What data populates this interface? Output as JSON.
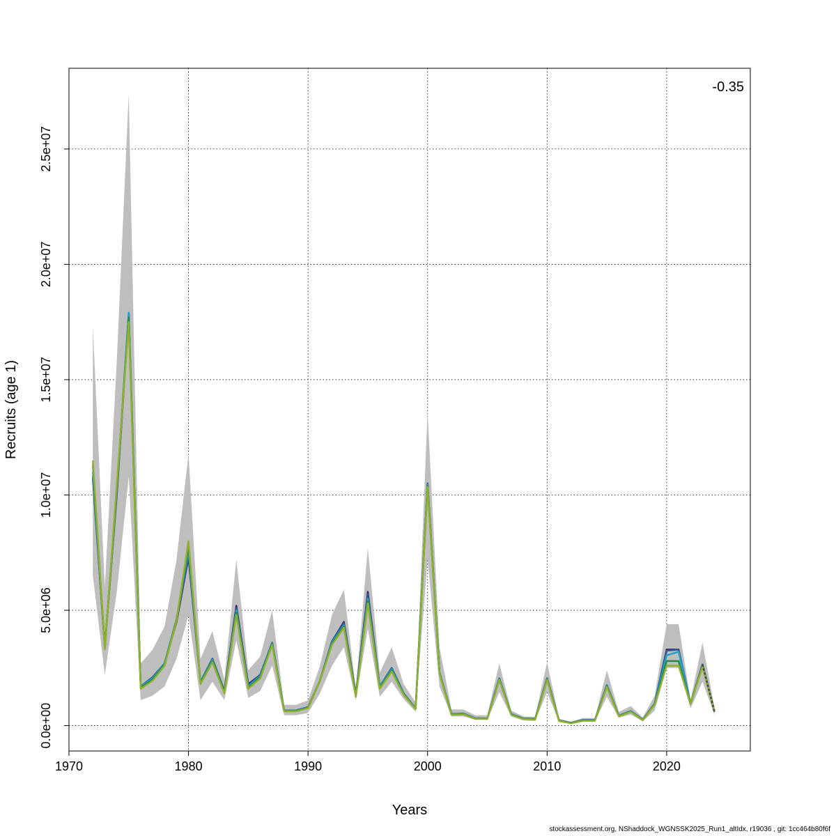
{
  "chart_data": {
    "type": "line",
    "xlabel": "Years",
    "ylabel": "Recruits (age 1)",
    "xlim": [
      1970,
      2027
    ],
    "ylim": [
      -1100000,
      28500000
    ],
    "x_ticks": [
      1970,
      1980,
      1990,
      2000,
      2010,
      2020
    ],
    "x_tick_labels": [
      "1970",
      "1980",
      "1990",
      "2000",
      "2010",
      "2020"
    ],
    "y_ticks": [
      0,
      5000000,
      10000000,
      15000000,
      20000000,
      25000000
    ],
    "y_tick_labels": [
      "0.0e+00",
      "5.0e+06",
      "1.0e+07",
      "1.5e+07",
      "2.0e+07",
      "2.5e+07"
    ],
    "grid": true,
    "annotation": "-0.35",
    "band_color": "#bebebe",
    "x": [
      1972,
      1973,
      1974,
      1975,
      1976,
      1977,
      1978,
      1979,
      1980,
      1981,
      1982,
      1983,
      1984,
      1985,
      1986,
      1987,
      1988,
      1989,
      1990,
      1991,
      1992,
      1993,
      1994,
      1995,
      1996,
      1997,
      1998,
      1999,
      2000,
      2001,
      2002,
      2003,
      2004,
      2005,
      2006,
      2007,
      2008,
      2009,
      2010,
      2011,
      2012,
      2013,
      2014,
      2015,
      2016,
      2017,
      2018,
      2019,
      2020,
      2021,
      2022,
      2023,
      2024
    ],
    "band_lower": [
      6500000,
      2200000,
      5800000,
      10800000,
      1100000,
      1300000,
      1700000,
      2900000,
      4800000,
      1100000,
      1900000,
      1100000,
      3700000,
      1200000,
      1500000,
      2600000,
      450000,
      450000,
      550000,
      1400000,
      2600000,
      3400000,
      1100000,
      4200000,
      1250000,
      1900000,
      1150000,
      600000,
      7200000,
      1700000,
      400000,
      400000,
      250000,
      250000,
      1450000,
      400000,
      220000,
      200000,
      1450000,
      160000,
      90000,
      180000,
      180000,
      1250000,
      350000,
      480000,
      180000,
      650000,
      2500000,
      2500000,
      750000,
      1900000,
      480000
    ],
    "band_upper": [
      17300000,
      6000000,
      15800000,
      27400000,
      2700000,
      3300000,
      4300000,
      7200000,
      11800000,
      2900000,
      4100000,
      2000000,
      7200000,
      2400000,
      3000000,
      5000000,
      900000,
      900000,
      1100000,
      2600000,
      4800000,
      5900000,
      1600000,
      7700000,
      2300000,
      3400000,
      1800000,
      1000000,
      13600000,
      3400000,
      700000,
      700000,
      450000,
      450000,
      2700000,
      650000,
      400000,
      380000,
      2750000,
      300000,
      170000,
      330000,
      330000,
      2400000,
      600000,
      850000,
      350000,
      1300000,
      4400000,
      4400000,
      1100000,
      3600000,
      800000
    ],
    "series": [
      {
        "color": "#3d1f6b",
        "values": [
          10700000,
          3400000,
          10000000,
          17800000,
          1700000,
          2100000,
          2700000,
          4500000,
          7300000,
          1900000,
          2900000,
          1500000,
          5200000,
          1800000,
          2200000,
          3600000,
          660000,
          660000,
          800000,
          1950000,
          3650000,
          4500000,
          1350000,
          5800000,
          1700000,
          2500000,
          1400000,
          750000,
          10500000,
          2300000,
          500000,
          520000,
          320000,
          310000,
          2050000,
          500000,
          310000,
          290000,
          2050000,
          220000,
          120000,
          240000,
          240000,
          1750000,
          430000,
          630000,
          260000,
          950000,
          3300000,
          3300000,
          950000,
          2650000,
          600000
        ]
      },
      {
        "color": "#2e5a8f",
        "values": [
          10800000,
          3400000,
          10100000,
          17900000,
          1700000,
          2100000,
          2700000,
          4600000,
          7400000,
          1900000,
          2900000,
          1500000,
          5100000,
          1750000,
          2200000,
          3600000,
          660000,
          660000,
          790000,
          1950000,
          3650000,
          4450000,
          1350000,
          5700000,
          1700000,
          2500000,
          1400000,
          750000,
          10500000,
          2300000,
          500000,
          520000,
          320000,
          310000,
          2050000,
          500000,
          310000,
          290000,
          2050000,
          220000,
          120000,
          240000,
          240000,
          1750000,
          430000,
          630000,
          260000,
          950000,
          3250000,
          3300000,
          950000,
          2650000,
          620000
        ]
      },
      {
        "color": "#26a0c8",
        "values": [
          11000000,
          3350000,
          10200000,
          17900000,
          1700000,
          2050000,
          2700000,
          4600000,
          7600000,
          1900000,
          2850000,
          1450000,
          5000000,
          1700000,
          2150000,
          3580000,
          650000,
          650000,
          780000,
          1950000,
          3600000,
          4350000,
          1300000,
          5500000,
          1700000,
          2450000,
          1380000,
          740000,
          10450000,
          2300000,
          490000,
          510000,
          310000,
          300000,
          2030000,
          490000,
          300000,
          280000,
          2020000,
          210000,
          110000,
          230000,
          230000,
          1720000,
          420000,
          620000,
          250000,
          930000,
          3050000,
          3200000,
          950000,
          2600000,
          620000
        ]
      },
      {
        "color": "#1f8a4c",
        "values": [
          11300000,
          3350000,
          10300000,
          17700000,
          1650000,
          2000000,
          2650000,
          4600000,
          7800000,
          1850000,
          2800000,
          1450000,
          4900000,
          1650000,
          2100000,
          3550000,
          640000,
          640000,
          770000,
          1950000,
          3550000,
          4300000,
          1300000,
          5400000,
          1650000,
          2400000,
          1360000,
          730000,
          10400000,
          2280000,
          480000,
          500000,
          300000,
          300000,
          2000000,
          480000,
          300000,
          270000,
          2000000,
          200000,
          110000,
          220000,
          220000,
          1700000,
          410000,
          610000,
          250000,
          920000,
          2800000,
          2800000,
          950000,
          2600000,
          620000
        ]
      },
      {
        "color": "#8fb02c",
        "values": [
          11500000,
          3300000,
          10400000,
          17500000,
          1600000,
          1950000,
          2600000,
          4550000,
          8000000,
          1800000,
          2750000,
          1400000,
          4800000,
          1600000,
          2050000,
          3500000,
          620000,
          620000,
          760000,
          1950000,
          3500000,
          4250000,
          1250000,
          5300000,
          1600000,
          2350000,
          1340000,
          720000,
          10350000,
          2250000,
          470000,
          490000,
          300000,
          290000,
          1980000,
          470000,
          290000,
          260000,
          1980000,
          200000,
          100000,
          210000,
          210000,
          1680000,
          400000,
          600000,
          240000,
          910000,
          2600000,
          2600000,
          950000,
          2550000,
          620000
        ]
      }
    ],
    "projection": {
      "x": [
        2023,
        2024
      ],
      "values": [
        2650000,
        600000
      ],
      "color": "#444444"
    }
  },
  "footer": "stockassessment.org, NShaddock_WGNSSK2025_Run1_altIdx, r19036 , git: 1cc464b80f6f"
}
